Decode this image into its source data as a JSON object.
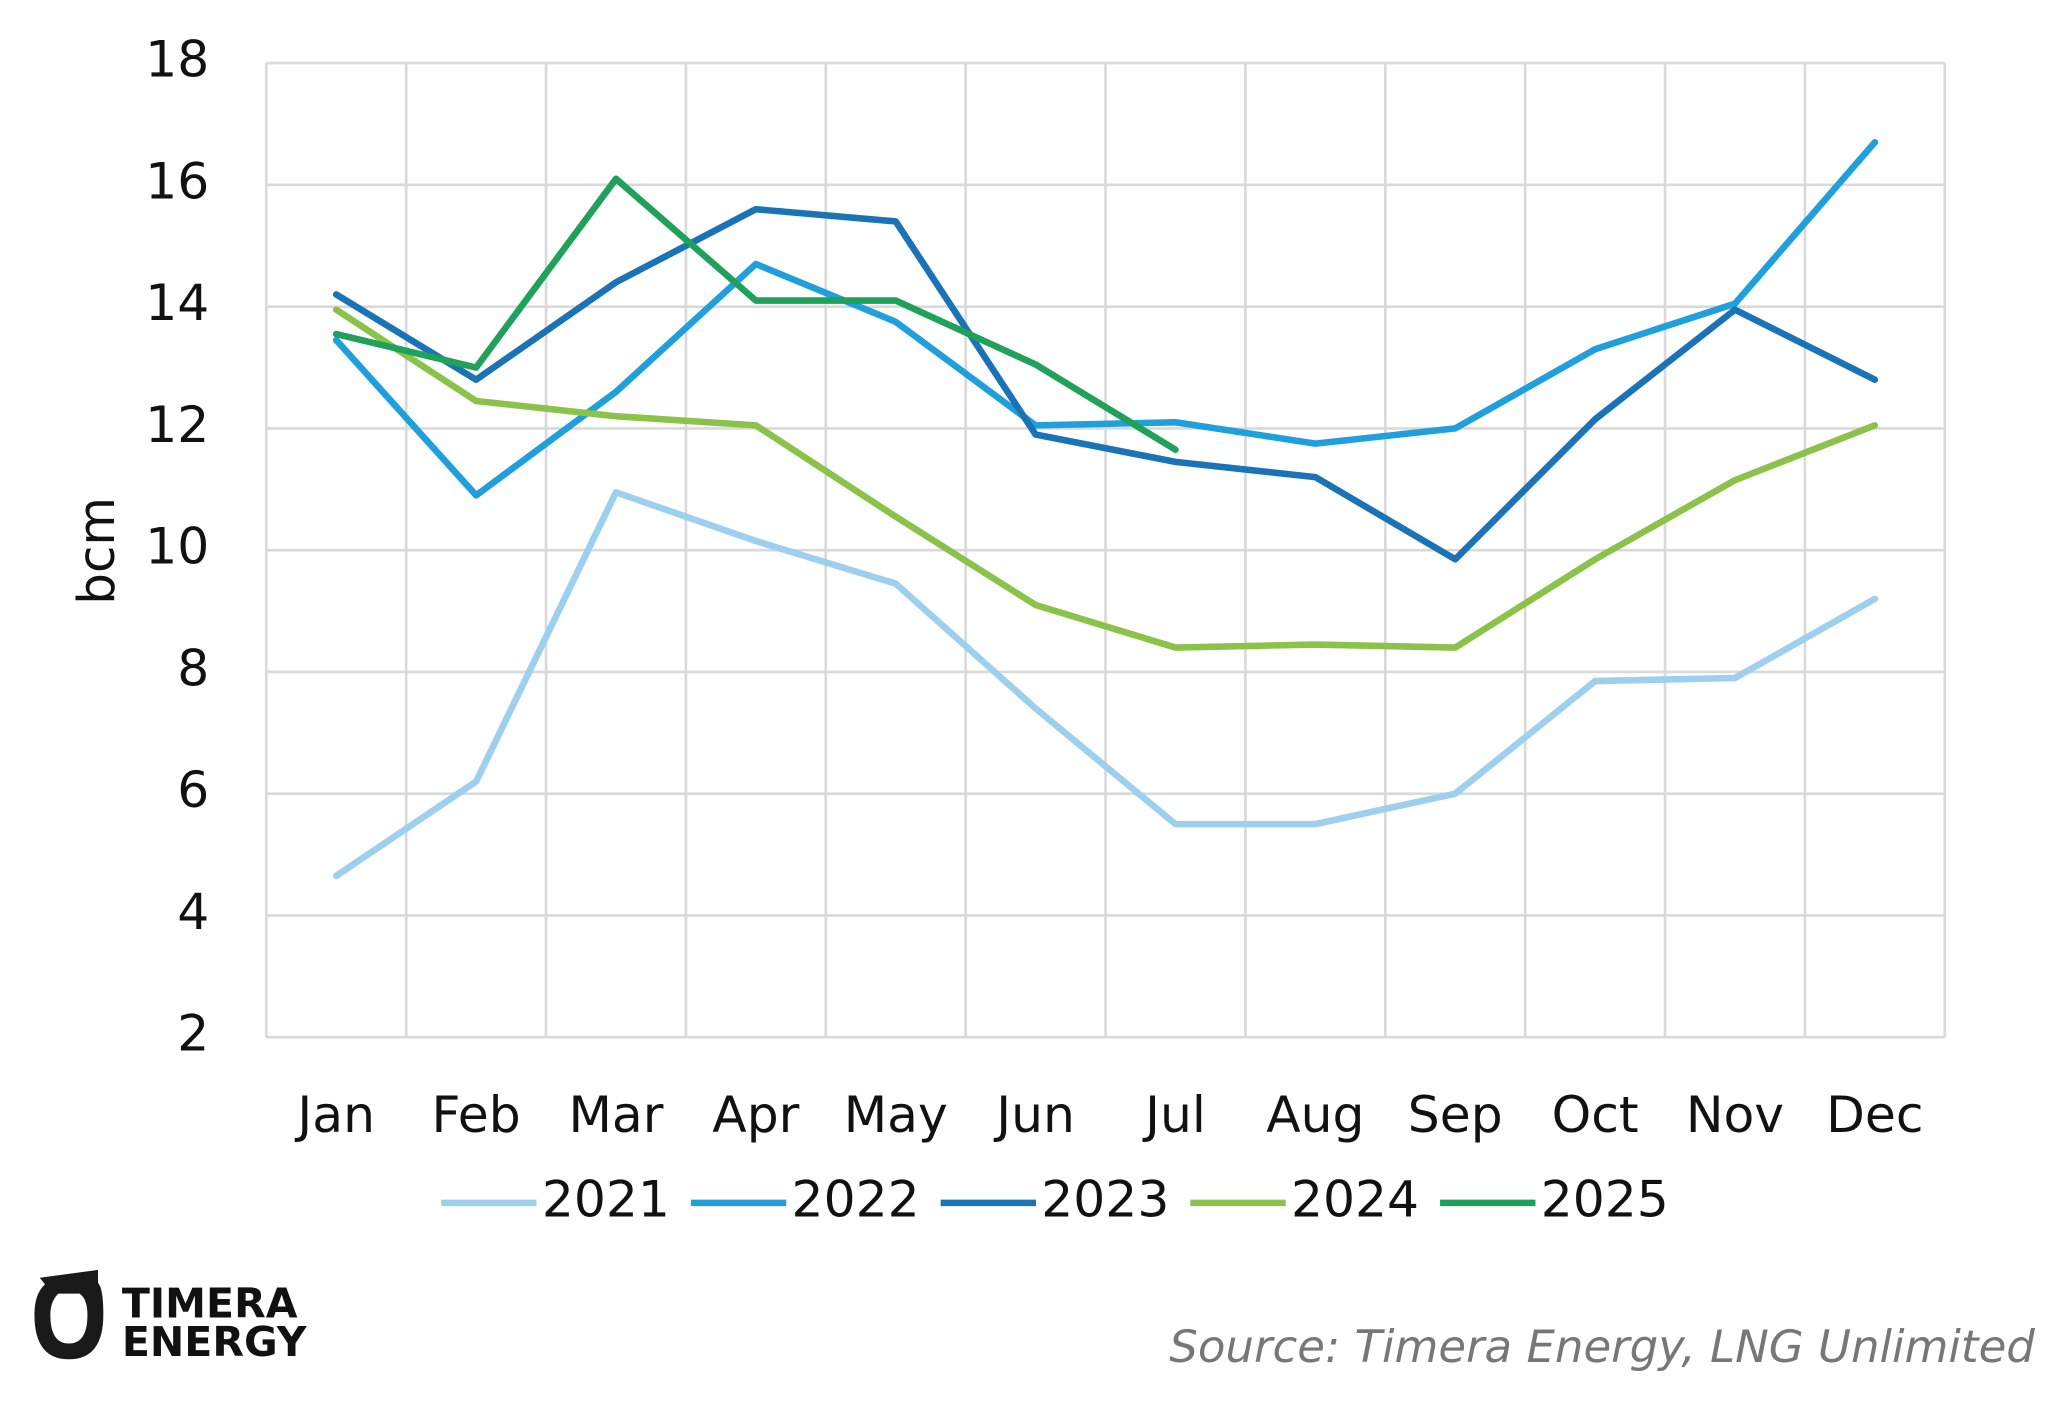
{
  "chart_data": {
    "type": "line",
    "y_label": "bcm",
    "categories": [
      "Jan",
      "Feb",
      "Mar",
      "Apr",
      "May",
      "Jun",
      "Jul",
      "Aug",
      "Sep",
      "Oct",
      "Nov",
      "Dec"
    ],
    "series": [
      {
        "name": "2021",
        "color": "#9dcfee",
        "values": [
          4.65,
          6.2,
          10.95,
          10.15,
          9.45,
          7.4,
          5.5,
          5.5,
          6.0,
          7.85,
          7.9,
          9.2
        ]
      },
      {
        "name": "2022",
        "color": "#1fa0dd",
        "values": [
          13.45,
          10.9,
          12.6,
          14.7,
          13.75,
          12.05,
          12.1,
          11.75,
          12.0,
          13.3,
          14.05,
          16.7
        ]
      },
      {
        "name": "2023",
        "color": "#1a73b6",
        "values": [
          14.2,
          12.8,
          14.4,
          15.6,
          15.4,
          11.9,
          11.45,
          11.2,
          9.85,
          12.15,
          13.95,
          12.8
        ]
      },
      {
        "name": "2024",
        "color": "#8bc34a",
        "values": [
          13.95,
          12.45,
          12.2,
          12.05,
          10.55,
          9.1,
          8.4,
          8.45,
          8.4,
          9.85,
          11.15,
          12.05
        ]
      },
      {
        "name": "2025",
        "color": "#1fa15a",
        "values": [
          13.55,
          13.0,
          16.1,
          14.1,
          14.1,
          13.05,
          11.65,
          null,
          null,
          null,
          null,
          null
        ]
      }
    ],
    "ylim": [
      2,
      18
    ],
    "yticks": [
      2,
      4,
      6,
      8,
      10,
      12,
      14,
      16,
      18
    ],
    "grid": true,
    "legend": "bottom"
  },
  "logo": [
    "TIMERA",
    "ENERGY"
  ],
  "source": "Source: Timera Energy, LNG Unlimited"
}
